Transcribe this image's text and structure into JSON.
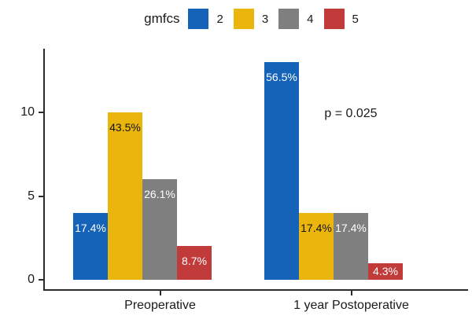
{
  "legend": {
    "title": "gmfcs",
    "items": [
      {
        "label": "2",
        "color": "#1563B8"
      },
      {
        "label": "3",
        "color": "#EAB60E"
      },
      {
        "label": "4",
        "color": "#7F7F7F"
      },
      {
        "label": "5",
        "color": "#C13B3B"
      }
    ]
  },
  "annotation": {
    "p_value": "p = 0.025"
  },
  "chart_data": {
    "type": "bar",
    "title": "",
    "xlabel": "",
    "ylabel": "",
    "categories": [
      "Preoperative",
      "1 year Postoperative"
    ],
    "series": [
      {
        "name": "2",
        "color": "#1563B8",
        "label_color": "#ffffff",
        "values": [
          4,
          13
        ],
        "pct_labels": [
          "17.4%",
          "56.5%"
        ]
      },
      {
        "name": "3",
        "color": "#EAB60E",
        "label_color": "#111111",
        "values": [
          10,
          4
        ],
        "pct_labels": [
          "43.5%",
          "17.4%"
        ]
      },
      {
        "name": "4",
        "color": "#7F7F7F",
        "label_color": "#ffffff",
        "values": [
          6,
          4
        ],
        "pct_labels": [
          "26.1%",
          "17.4%"
        ]
      },
      {
        "name": "5",
        "color": "#C13B3B",
        "label_color": "#ffffff",
        "values": [
          2,
          1
        ],
        "pct_labels": [
          "8.7%",
          "4.3%"
        ]
      }
    ],
    "y_ticks": [
      0,
      5,
      10
    ],
    "ylim": [
      0,
      13.8
    ],
    "grid": false,
    "legend_position": "top",
    "axis_color": "#2b2b2b"
  }
}
